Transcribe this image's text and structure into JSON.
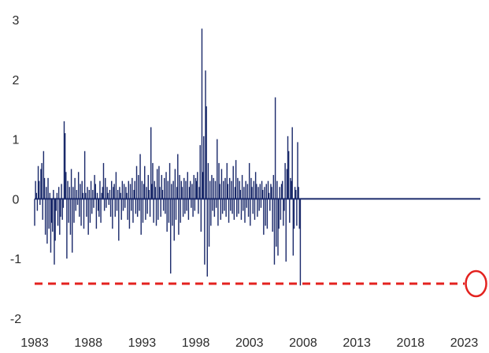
{
  "chart_data": {
    "type": "bar",
    "title": "",
    "xlabel": "",
    "ylabel": "",
    "ylim": [
      -2,
      3
    ],
    "xlim": [
      1983.0,
      2024.5
    ],
    "y_ticks": [
      "3",
      "2",
      "1",
      "0",
      "-1",
      "-2"
    ],
    "y_tick_values": [
      3,
      2,
      1,
      0,
      -1,
      -2
    ],
    "x_ticks": [
      "1983",
      "1988",
      "1993",
      "1998",
      "2003",
      "2008",
      "2013",
      "2018",
      "2023"
    ],
    "x_tick_values": [
      1983,
      1988,
      1993,
      1998,
      2003,
      2008,
      2013,
      2018,
      2023
    ],
    "grid": false,
    "legend": "none",
    "bar_color": "#1b2a6b",
    "reference_line": {
      "value": -1.42,
      "color": "#e3221f",
      "style": "dashed"
    },
    "highlight_circle": {
      "x": 2024.1,
      "y": -1.42,
      "color": "#e3221f"
    },
    "series": [
      {
        "x_start": 1983.0,
        "step_years": 0.0833,
        "values": [
          -0.45,
          0.3,
          0.1,
          -0.2,
          0.55,
          0.3,
          -0.1,
          0.5,
          0.6,
          -0.35,
          0.8,
          0.35,
          -0.6,
          0.2,
          -0.75,
          0.35,
          -0.5,
          0.1,
          -0.9,
          -0.4,
          -0.55,
          0.15,
          -1.1,
          -0.7,
          -0.2,
          0.1,
          -0.45,
          0.2,
          -0.6,
          -0.3,
          0.25,
          -0.35,
          -0.15,
          1.3,
          1.1,
          0.45,
          -1.0,
          0.3,
          -0.4,
          0.2,
          -0.6,
          0.5,
          -0.9,
          0.2,
          -0.4,
          0.35,
          -0.2,
          0.15,
          -0.1,
          0.45,
          -0.3,
          0.25,
          -0.45,
          0.3,
          0.1,
          -0.5,
          0.8,
          0.1,
          -0.3,
          0.2,
          -0.6,
          0.15,
          -0.4,
          0.3,
          -0.25,
          0.15,
          -0.15,
          0.4,
          0.25,
          -0.5,
          0.1,
          -0.2,
          -0.3,
          0.3,
          -0.4,
          0.1,
          0.2,
          0.6,
          -0.2,
          0.35,
          -0.15,
          0.2,
          0.1,
          -0.1,
          0.15,
          -0.3,
          0.3,
          -0.5,
          0.2,
          0.25,
          -0.3,
          0.45,
          -0.2,
          0.15,
          -0.7,
          0.2,
          0.1,
          -0.35,
          0.3,
          -0.2,
          0.25,
          -0.15,
          0.2,
          0.1,
          -0.35,
          0.3,
          -0.5,
          0.25,
          -0.2,
          0.35,
          -0.4,
          0.15,
          0.3,
          -0.25,
          0.55,
          -0.3,
          0.4,
          -0.2,
          0.75,
          -0.6,
          0.3,
          -0.4,
          0.25,
          0.55,
          -0.35,
          0.2,
          -0.25,
          0.4,
          0.15,
          -0.3,
          1.2,
          0.25,
          0.6,
          -0.4,
          0.3,
          0.2,
          -0.45,
          0.5,
          -0.35,
          0.55,
          0.2,
          -0.3,
          0.4,
          0.15,
          -0.2,
          0.35,
          -0.25,
          0.45,
          -0.55,
          0.3,
          -0.4,
          0.6,
          -1.25,
          0.25,
          -0.45,
          0.3,
          -0.7,
          0.5,
          -0.35,
          0.2,
          0.75,
          -0.6,
          0.4,
          -0.4,
          0.3,
          0.2,
          -0.3,
          0.35,
          -0.25,
          0.3,
          -0.2,
          0.45,
          -0.35,
          0.2,
          0.3,
          -0.15,
          0.25,
          -0.3,
          0.4,
          -0.2,
          0.35,
          0.3,
          0.45,
          -0.25,
          0.2,
          0.9,
          -0.55,
          2.85,
          0.45,
          1.05,
          -1.1,
          2.15,
          1.55,
          -1.3,
          0.6,
          -0.8,
          0.3,
          -0.45,
          0.4,
          -0.2,
          0.35,
          -0.3,
          0.3,
          -0.15,
          1.0,
          -0.45,
          0.6,
          0.25,
          -0.35,
          0.5,
          -0.25,
          0.3,
          -0.2,
          0.35,
          -0.3,
          0.6,
          0.25,
          -0.4,
          0.35,
          -0.2,
          0.3,
          -0.25,
          0.55,
          -0.35,
          0.2,
          0.65,
          -0.3,
          0.35,
          -0.25,
          0.3,
          0.15,
          -0.35,
          0.4,
          -0.2,
          0.2,
          -0.4,
          0.3,
          -0.15,
          0.25,
          -0.3,
          0.6,
          -0.45,
          0.35,
          0.2,
          -0.25,
          0.3,
          -0.35,
          0.45,
          0.25,
          -0.3,
          0.2,
          -0.2,
          0.25,
          -0.15,
          0.3,
          0.15,
          -0.6,
          0.2,
          -0.45,
          0.25,
          -0.5,
          0.3,
          0.1,
          -0.2,
          0.25,
          0.2,
          -0.55,
          0.4,
          -1.1,
          1.7,
          -0.8,
          0.3,
          -0.95,
          -0.5,
          0.2,
          -0.35,
          0.25,
          0.3,
          -0.45,
          -0.2,
          0.6,
          -1.05,
          0.5,
          1.05,
          0.8,
          -0.4,
          0.35,
          0.3,
          1.2,
          -0.95,
          -0.5,
          0.2,
          0.15,
          -0.45,
          0.95,
          0.2,
          -0.5,
          -1.45
        ]
      }
    ]
  }
}
